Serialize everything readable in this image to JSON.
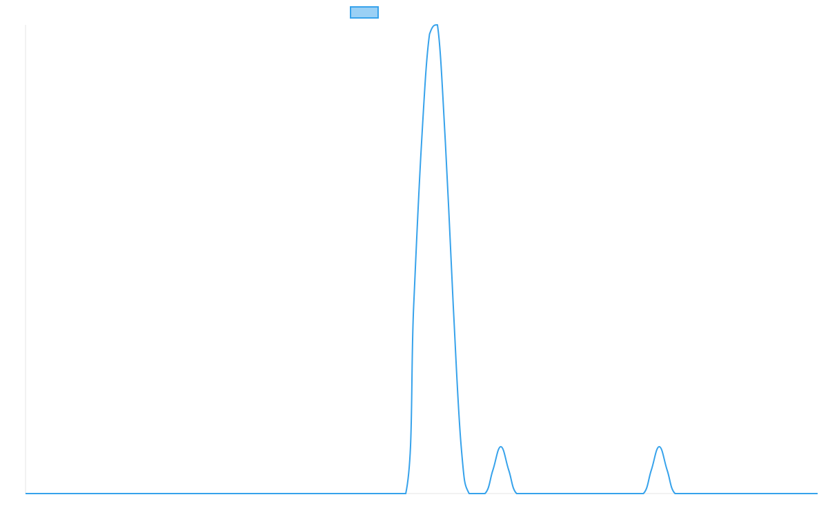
{
  "chart_data": {
    "type": "line",
    "title": "",
    "xlabel": "",
    "ylabel": "",
    "grid": false,
    "legend": {
      "position": "top",
      "label": "",
      "color": "#36a2eb",
      "fill": "#9ad0f5"
    },
    "x": [
      0,
      2,
      4,
      6,
      8,
      10,
      12,
      14,
      16,
      18,
      20,
      22,
      24,
      24.5,
      25,
      25.5,
      26,
      26.5,
      27,
      27.5,
      28,
      29,
      29.5,
      30,
      30.5,
      31,
      32,
      34,
      36,
      38,
      39,
      39.5,
      40,
      40.5,
      41,
      42,
      44,
      46,
      48,
      50
    ],
    "series": [
      {
        "color": "#36a2eb",
        "values": [
          0,
          0,
          0,
          0,
          0,
          0,
          0,
          0,
          0,
          0,
          0,
          0,
          0,
          0.4,
          0.75,
          0.98,
          1.0,
          0.75,
          0.4,
          0.1,
          0,
          0,
          0.05,
          0.1,
          0.05,
          0,
          0,
          0,
          0,
          0,
          0,
          0.05,
          0.1,
          0.05,
          0,
          0,
          0,
          0,
          0,
          0
        ]
      }
    ],
    "xlim": [
      0,
      50
    ],
    "ylim": [
      0,
      1.0
    ]
  }
}
